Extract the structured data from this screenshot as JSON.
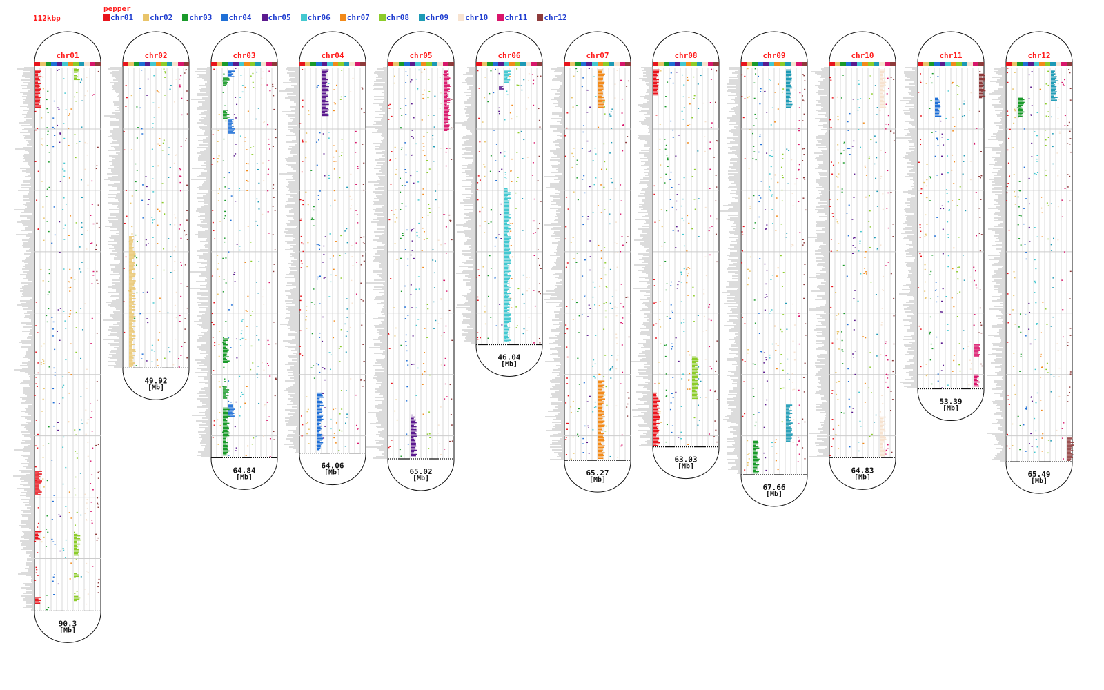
{
  "figure": {
    "scale_label": "112kbp",
    "species_label": "pepper",
    "unit_label": "[Mb]"
  },
  "legend": [
    {
      "name": "chr01",
      "color": "#e8141c"
    },
    {
      "name": "chr02",
      "color": "#e9c46a"
    },
    {
      "name": "chr03",
      "color": "#1a9a2a"
    },
    {
      "name": "chr04",
      "color": "#1f6fd6"
    },
    {
      "name": "chr05",
      "color": "#5b1a8e"
    },
    {
      "name": "chr06",
      "color": "#44c8d0"
    },
    {
      "name": "chr07",
      "color": "#f28a1a"
    },
    {
      "name": "chr08",
      "color": "#8ccc2a"
    },
    {
      "name": "chr09",
      "color": "#1d9ab5"
    },
    {
      "name": "chr10",
      "color": "#f7e3d0"
    },
    {
      "name": "chr11",
      "color": "#d9156b"
    },
    {
      "name": "chr12",
      "color": "#8e3b3b"
    }
  ],
  "chart_data": {
    "type": "diagram",
    "units": "Mb",
    "chromosomes": [
      {
        "name": "chr01",
        "length": 90.3,
        "length_label": "90.3",
        "blocks": [
          {
            "target": 1,
            "start": 0.5,
            "end": 6.5
          },
          {
            "target": 8,
            "start": 0.0,
            "end": 0.8
          },
          {
            "target": 8,
            "start": 1.2,
            "end": 2.0
          },
          {
            "target": 1,
            "start": 67.0,
            "end": 71.0
          },
          {
            "target": 1,
            "start": 77.0,
            "end": 78.5
          },
          {
            "target": 1,
            "start": 88.0,
            "end": 89.0
          },
          {
            "target": 8,
            "start": 77.5,
            "end": 81.0
          },
          {
            "target": 8,
            "start": 84.0,
            "end": 84.6
          },
          {
            "target": 8,
            "start": 87.8,
            "end": 88.6
          }
        ]
      },
      {
        "name": "chr02",
        "length": 49.92,
        "length_label": "49.92",
        "blocks": [
          {
            "target": 2,
            "start": 28.0,
            "end": 49.7
          }
        ]
      },
      {
        "name": "chr03",
        "length": 64.84,
        "length_label": "64.84",
        "blocks": [
          {
            "target": 4,
            "start": 0.5,
            "end": 1.6
          },
          {
            "target": 3,
            "start": 1.5,
            "end": 3.0
          },
          {
            "target": 3,
            "start": 7.0,
            "end": 8.5
          },
          {
            "target": 4,
            "start": 8.5,
            "end": 11.0
          },
          {
            "target": 3,
            "start": 45.0,
            "end": 49.0
          },
          {
            "target": 3,
            "start": 53.0,
            "end": 55.0
          },
          {
            "target": 4,
            "start": 56.0,
            "end": 58.0
          },
          {
            "target": 3,
            "start": 56.5,
            "end": 64.5
          }
        ]
      },
      {
        "name": "chr04",
        "length": 64.06,
        "length_label": "64.06",
        "blocks": [
          {
            "target": 5,
            "start": 0.3,
            "end": 8.0
          },
          {
            "target": 4,
            "start": 54.0,
            "end": 63.5
          }
        ]
      },
      {
        "name": "chr05",
        "length": 65.02,
        "length_label": "65.02",
        "blocks": [
          {
            "target": 11,
            "start": 0.5,
            "end": 10.5
          },
          {
            "target": 5,
            "start": 58.0,
            "end": 64.5
          }
        ]
      },
      {
        "name": "chr06",
        "length": 46.04,
        "length_label": "46.04",
        "blocks": [
          {
            "target": 6,
            "start": 0.5,
            "end": 2.5
          },
          {
            "target": 5,
            "start": 3.0,
            "end": 3.6
          },
          {
            "target": 6,
            "start": 20.0,
            "end": 45.5
          }
        ]
      },
      {
        "name": "chr07",
        "length": 65.27,
        "length_label": "65.27",
        "blocks": [
          {
            "target": 7,
            "start": 0.3,
            "end": 6.5
          },
          {
            "target": 7,
            "start": 52.0,
            "end": 65.0
          }
        ]
      },
      {
        "name": "chr08",
        "length": 63.03,
        "length_label": "63.03",
        "blocks": [
          {
            "target": 1,
            "start": 0.3,
            "end": 4.5
          },
          {
            "target": 1,
            "start": 54.0,
            "end": 62.8
          },
          {
            "target": 8,
            "start": 48.0,
            "end": 55.0
          }
        ]
      },
      {
        "name": "chr09",
        "length": 67.66,
        "length_label": "67.66",
        "blocks": [
          {
            "target": 9,
            "start": 0.3,
            "end": 6.5
          },
          {
            "target": 9,
            "start": 56.0,
            "end": 62.0
          },
          {
            "target": 3,
            "start": 62.0,
            "end": 67.4
          }
        ]
      },
      {
        "name": "chr10",
        "length": 64.83,
        "length_label": "64.83",
        "blocks": [
          {
            "target": 10,
            "start": 0.3,
            "end": 6.5
          },
          {
            "target": 10,
            "start": 58.0,
            "end": 64.5
          }
        ]
      },
      {
        "name": "chr11",
        "length": 53.39,
        "length_label": "53.39",
        "blocks": [
          {
            "target": 12,
            "start": 1.0,
            "end": 5.0
          },
          {
            "target": 4,
            "start": 5.0,
            "end": 8.0
          },
          {
            "target": 11,
            "start": 46.0,
            "end": 48.0
          },
          {
            "target": 11,
            "start": 51.0,
            "end": 53.0
          }
        ]
      },
      {
        "name": "chr12",
        "length": 65.49,
        "length_label": "65.49",
        "blocks": [
          {
            "target": 9,
            "start": 0.5,
            "end": 5.5
          },
          {
            "target": 3,
            "start": 5.0,
            "end": 8.0
          },
          {
            "target": 12,
            "start": 61.5,
            "end": 65.3
          }
        ]
      }
    ]
  }
}
